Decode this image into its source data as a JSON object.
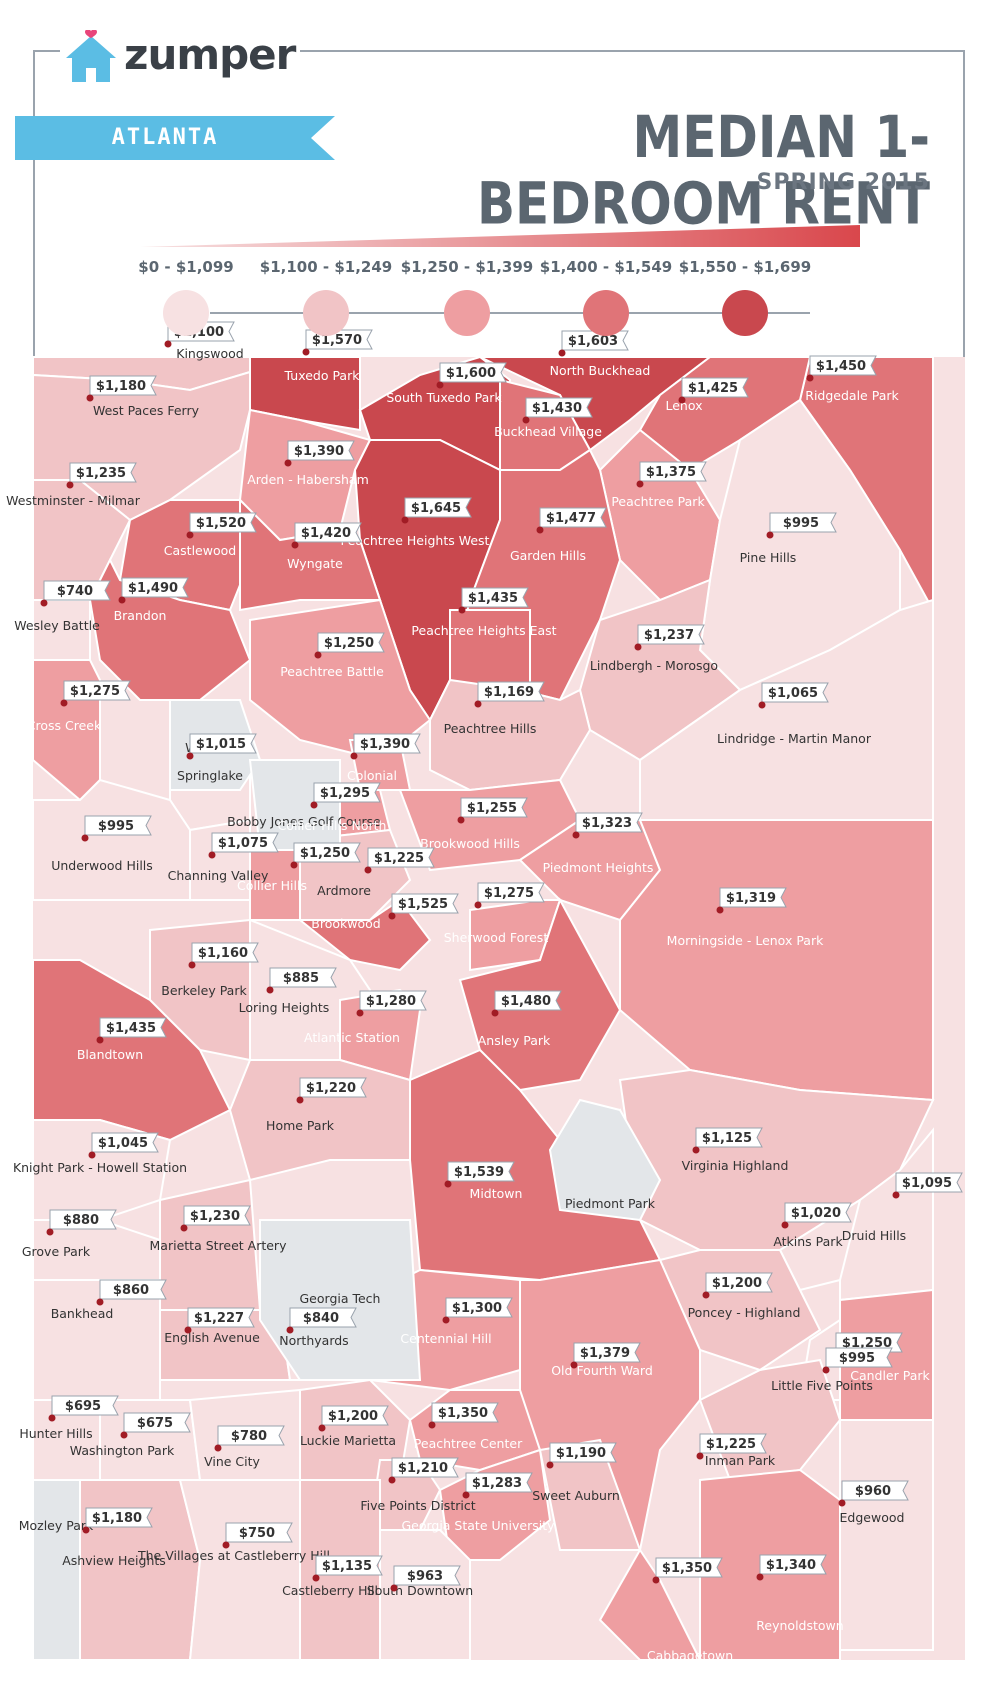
{
  "brand": {
    "name": "zumper"
  },
  "city": "ATLANTA",
  "title": "MEDIAN 1-BEDROOM RENT",
  "subtitle": "SPRING 2015",
  "colors": {
    "frame": "#9aa3ad",
    "ribbon": "#5bbde4",
    "logo_blue": "#5bbde4",
    "logo_heart": "#e8457a",
    "no_data": "#e3e6e9"
  },
  "legend": [
    {
      "range": "$0 - $1,099",
      "color": "#f7e1e2"
    },
    {
      "range": "$1,100 - $1,249",
      "color": "#f1c4c6"
    },
    {
      "range": "$1,250 - $1,399",
      "color": "#ee9ea1"
    },
    {
      "range": "$1,400 - $1,549",
      "color": "#e07478"
    },
    {
      "range": "$1,550 - $1,699",
      "color": "#c9484e"
    }
  ],
  "neighborhoods": [
    {
      "name": "Kingswood",
      "price": "$1,100",
      "price_value": 1100
    },
    {
      "name": "Tuxedo Park",
      "price": "$1,570",
      "price_value": 1570
    },
    {
      "name": "South Tuxedo Park",
      "price": "$1,600",
      "price_value": 1600
    },
    {
      "name": "North Buckhead",
      "price": "$1,603",
      "price_value": 1603
    },
    {
      "name": "Ridgedale Park",
      "price": "$1,450",
      "price_value": 1450
    },
    {
      "name": "West Paces Ferry",
      "price": "$1,180",
      "price_value": 1180
    },
    {
      "name": "Buckhead Village",
      "price": "$1,430",
      "price_value": 1430
    },
    {
      "name": "Lenox",
      "price": "$1,425",
      "price_value": 1425
    },
    {
      "name": "Arden - Habersham",
      "price": "$1,390",
      "price_value": 1390
    },
    {
      "name": "Westminster - Milmar",
      "price": "$1,235",
      "price_value": 1235
    },
    {
      "name": "Peachtree Heights West",
      "price": "$1,645",
      "price_value": 1645
    },
    {
      "name": "Peachtree Park",
      "price": "$1,375",
      "price_value": 1375
    },
    {
      "name": "Castlewood",
      "price": "$1,520",
      "price_value": 1520
    },
    {
      "name": "Garden Hills",
      "price": "$1,477",
      "price_value": 1477
    },
    {
      "name": "Wyngate",
      "price": "$1,420",
      "price_value": 1420
    },
    {
      "name": "Pine Hills",
      "price": "$995",
      "price_value": 995
    },
    {
      "name": "Wesley Battle",
      "price": "$740",
      "price_value": 740
    },
    {
      "name": "Brandon",
      "price": "$1,490",
      "price_value": 1490
    },
    {
      "name": "Peachtree Heights East",
      "price": "$1,435",
      "price_value": 1435
    },
    {
      "name": "Peachtree Battle",
      "price": "$1,250",
      "price_value": 1250
    },
    {
      "name": "Lindbergh - Morosgo",
      "price": "$1,237",
      "price_value": 1237
    },
    {
      "name": "Cross Creek",
      "price": "$1,275",
      "price_value": 1275
    },
    {
      "name": "Peachtree Hills",
      "price": "$1,169",
      "price_value": 1169
    },
    {
      "name": "Lindridge - Martin Manor",
      "price": "$1,065",
      "price_value": 1065
    },
    {
      "name": "Springlake",
      "price": "$1,015",
      "price_value": 1015
    },
    {
      "name": "Colonial",
      "price": "$1,390",
      "price_value": 1390
    },
    {
      "name": "Collier Hills North",
      "price": "$1,295",
      "price_value": 1295
    },
    {
      "name": "Brookwood Hills",
      "price": "$1,255",
      "price_value": 1255
    },
    {
      "name": "Underwood Hills",
      "price": "$995",
      "price_value": 995
    },
    {
      "name": "Channing Valley",
      "price": "$1,075",
      "price_value": 1075
    },
    {
      "name": "Piedmont Heights",
      "price": "$1,323",
      "price_value": 1323
    },
    {
      "name": "Collier Hills",
      "price": "$1,250",
      "price_value": 1250
    },
    {
      "name": "Ardmore",
      "price": "$1,225",
      "price_value": 1225
    },
    {
      "name": "Brookwood",
      "price": "$1,525",
      "price_value": 1525
    },
    {
      "name": "Sherwood Forest",
      "price": "$1,275",
      "price_value": 1275
    },
    {
      "name": "Morningside - Lenox Park",
      "price": "$1,319",
      "price_value": 1319
    },
    {
      "name": "Berkeley Park",
      "price": "$1,160",
      "price_value": 1160
    },
    {
      "name": "Loring Heights",
      "price": "$885",
      "price_value": 885
    },
    {
      "name": "Atlantic Station",
      "price": "$1,280",
      "price_value": 1280
    },
    {
      "name": "Ansley Park",
      "price": "$1,480",
      "price_value": 1480
    },
    {
      "name": "Blandtown",
      "price": "$1,435",
      "price_value": 1435
    },
    {
      "name": "Home Park",
      "price": "$1,220",
      "price_value": 1220
    },
    {
      "name": "Knight Park - Howell Station",
      "price": "$1,045",
      "price_value": 1045
    },
    {
      "name": "Virginia Highland",
      "price": "$1,125",
      "price_value": 1125
    },
    {
      "name": "Midtown",
      "price": "$1,539",
      "price_value": 1539
    },
    {
      "name": "Druid Hills",
      "price": "$1,095",
      "price_value": 1095
    },
    {
      "name": "Marietta Street Artery",
      "price": "$1,230",
      "price_value": 1230
    },
    {
      "name": "Grove Park",
      "price": "$880",
      "price_value": 880
    },
    {
      "name": "Atkins Park",
      "price": "$1,020",
      "price_value": 1020
    },
    {
      "name": "Bankhead",
      "price": "$860",
      "price_value": 860
    },
    {
      "name": "Poncey - Highland",
      "price": "$1,200",
      "price_value": 1200
    },
    {
      "name": "English Avenue",
      "price": "$1,227",
      "price_value": 1227
    },
    {
      "name": "Northyards",
      "price": "$840",
      "price_value": 840
    },
    {
      "name": "Centennial Hill",
      "price": "$1,300",
      "price_value": 1300
    },
    {
      "name": "Old Fourth Ward",
      "price": "$1,379",
      "price_value": 1379
    },
    {
      "name": "Candler Park",
      "price": "$1,250",
      "price_value": 1250
    },
    {
      "name": "Little Five Points",
      "price": "$995",
      "price_value": 995
    },
    {
      "name": "Hunter Hills",
      "price": "$695",
      "price_value": 695
    },
    {
      "name": "Washington Park",
      "price": "$675",
      "price_value": 675
    },
    {
      "name": "Vine City",
      "price": "$780",
      "price_value": 780
    },
    {
      "name": "Luckie Marietta",
      "price": "$1,200",
      "price_value": 1200
    },
    {
      "name": "Peachtree Center",
      "price": "$1,350",
      "price_value": 1350
    },
    {
      "name": "Inman Park",
      "price": "$1,225",
      "price_value": 1225
    },
    {
      "name": "Five Points District",
      "price": "$1,210",
      "price_value": 1210
    },
    {
      "name": "Georgia State University",
      "price": "$1,283",
      "price_value": 1283
    },
    {
      "name": "Sweet Auburn",
      "price": "$1,190",
      "price_value": 1190
    },
    {
      "name": "Edgewood",
      "price": "$960",
      "price_value": 960
    },
    {
      "name": "Mozley Park",
      "price": "",
      "price_value": null
    },
    {
      "name": "Ashview Heights",
      "price": "$1,180",
      "price_value": 1180
    },
    {
      "name": "The Villages at Castleberry Hill",
      "price": "$750",
      "price_value": 750
    },
    {
      "name": "Castleberry Hill",
      "price": "$1,135",
      "price_value": 1135
    },
    {
      "name": "South Downtown",
      "price": "$963",
      "price_value": 963
    },
    {
      "name": "Cabbagetown",
      "price": "$1,350",
      "price_value": 1350
    },
    {
      "name": "Reynoldstown",
      "price": "$1,340",
      "price_value": 1340
    }
  ],
  "no_data_areas": [
    {
      "name": "Woodfield"
    },
    {
      "name": "Bobby Jones Golf Course"
    },
    {
      "name": "Piedmont Park"
    },
    {
      "name": "Georgia Tech"
    }
  ]
}
